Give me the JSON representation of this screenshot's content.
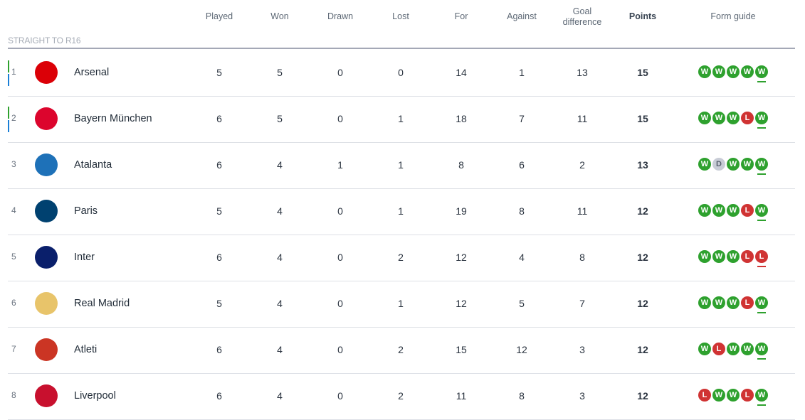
{
  "headers": {
    "played": "Played",
    "won": "Won",
    "drawn": "Drawn",
    "lost": "Lost",
    "for": "For",
    "against": "Against",
    "gd": "Goal difference",
    "points": "Points",
    "form": "Form guide"
  },
  "section": "STRAIGHT TO R16",
  "colors": {
    "win": "#2ea12e",
    "loss": "#d03333",
    "draw": "#c8ccd6",
    "qualify_green": "#2ea12e",
    "qualify_blue": "#1a7fd6"
  },
  "rows": [
    {
      "rank": "1",
      "team": "Arsenal",
      "played": "5",
      "won": "5",
      "drawn": "0",
      "lost": "0",
      "for": "14",
      "against": "1",
      "gd": "13",
      "points": "15",
      "form": [
        "W",
        "W",
        "W",
        "W",
        "W"
      ],
      "crest": "#db0007"
    },
    {
      "rank": "2",
      "team": "Bayern München",
      "played": "6",
      "won": "5",
      "drawn": "0",
      "lost": "1",
      "for": "18",
      "against": "7",
      "gd": "11",
      "points": "15",
      "form": [
        "W",
        "W",
        "W",
        "L",
        "W"
      ],
      "crest": "#dc052d"
    },
    {
      "rank": "3",
      "team": "Atalanta",
      "played": "6",
      "won": "4",
      "drawn": "1",
      "lost": "1",
      "for": "8",
      "against": "6",
      "gd": "2",
      "points": "13",
      "form": [
        "W",
        "D",
        "W",
        "W",
        "W"
      ],
      "crest": "#1e71b8"
    },
    {
      "rank": "4",
      "team": "Paris",
      "played": "5",
      "won": "4",
      "drawn": "0",
      "lost": "1",
      "for": "19",
      "against": "8",
      "gd": "11",
      "points": "12",
      "form": [
        "W",
        "W",
        "W",
        "L",
        "W"
      ],
      "crest": "#004170"
    },
    {
      "rank": "5",
      "team": "Inter",
      "played": "6",
      "won": "4",
      "drawn": "0",
      "lost": "2",
      "for": "12",
      "against": "4",
      "gd": "8",
      "points": "12",
      "form": [
        "W",
        "W",
        "W",
        "L",
        "L"
      ],
      "crest": "#0a1f6b"
    },
    {
      "rank": "6",
      "team": "Real Madrid",
      "played": "5",
      "won": "4",
      "drawn": "0",
      "lost": "1",
      "for": "12",
      "against": "5",
      "gd": "7",
      "points": "12",
      "form": [
        "W",
        "W",
        "W",
        "L",
        "W"
      ],
      "crest": "#e8c46a"
    },
    {
      "rank": "7",
      "team": "Atleti",
      "played": "6",
      "won": "4",
      "drawn": "0",
      "lost": "2",
      "for": "15",
      "against": "12",
      "gd": "3",
      "points": "12",
      "form": [
        "W",
        "L",
        "W",
        "W",
        "W"
      ],
      "crest": "#cb3524"
    },
    {
      "rank": "8",
      "team": "Liverpool",
      "played": "6",
      "won": "4",
      "drawn": "0",
      "lost": "2",
      "for": "11",
      "against": "8",
      "gd": "3",
      "points": "12",
      "form": [
        "L",
        "W",
        "W",
        "L",
        "W"
      ],
      "crest": "#c8102e"
    }
  ]
}
